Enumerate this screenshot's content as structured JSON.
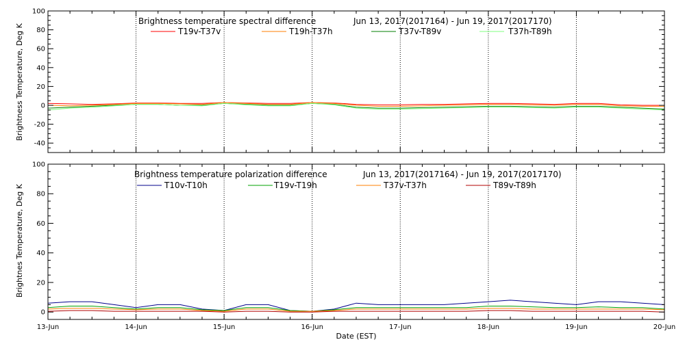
{
  "chart_data": [
    {
      "type": "line",
      "title": "Brightness temperature spectral difference",
      "date_range": "Jun 13, 2017(2017164) - Jun 19, 2017(2017170)",
      "ylabel": "Brightness Temperature, Deg K",
      "xlabel": "",
      "ylim": [
        -50,
        100
      ],
      "yticks": [
        "-40",
        "-20",
        "0",
        "20",
        "40",
        "60",
        "80",
        "100"
      ],
      "xlim": [
        0,
        7
      ],
      "xticks": [
        "13-Jun",
        "14-Jun",
        "15-Jun",
        "16-Jun",
        "17-Jun",
        "18-Jun",
        "19-Jun",
        "20-Jun"
      ],
      "x_tick_labels_shown": false,
      "vertical_gridlines": true,
      "series": [
        {
          "name": "T19v-T37v",
          "color": "#ff0000",
          "x": [
            0,
            0.25,
            0.5,
            0.75,
            1,
            1.25,
            1.5,
            1.75,
            2,
            2.25,
            2.5,
            2.75,
            3,
            3.25,
            3.5,
            3.75,
            4,
            4.25,
            4.5,
            4.75,
            5,
            5.25,
            5.5,
            5.75,
            6,
            6.25,
            6.5,
            6.75,
            7
          ],
          "values": [
            2,
            1.5,
            1,
            1.5,
            2.5,
            2.5,
            2,
            2,
            3,
            2.5,
            2,
            2,
            3,
            2.5,
            1,
            0.5,
            0.5,
            1,
            1,
            1.5,
            2,
            2,
            1.5,
            1,
            2,
            2,
            0.5,
            0,
            0
          ]
        },
        {
          "name": "T19h-T37h",
          "color": "#ff7f00",
          "x": [
            0,
            0.25,
            0.5,
            0.75,
            1,
            1.25,
            1.5,
            1.75,
            2,
            2.25,
            2.5,
            2.75,
            3,
            3.25,
            3.5,
            3.75,
            4,
            4.25,
            4.5,
            4.75,
            5,
            5.25,
            5.5,
            5.75,
            6,
            6.25,
            6.5,
            6.75,
            7
          ],
          "values": [
            0,
            -0.5,
            0,
            1,
            2,
            2,
            1.5,
            1,
            3,
            2,
            1,
            1,
            3,
            2,
            0,
            -1,
            -1,
            -0.5,
            0,
            0.5,
            1,
            1,
            0.5,
            0,
            1,
            1,
            -0.5,
            -1,
            -1
          ]
        },
        {
          "name": "T37v-T89v",
          "color": "#007f00",
          "x": [
            0,
            0.25,
            0.5,
            0.75,
            1,
            1.25,
            1.5,
            1.75,
            2,
            2.25,
            2.5,
            2.75,
            3,
            3.25,
            3.5,
            3.75,
            4,
            4.25,
            4.5,
            4.75,
            5,
            5.25,
            5.5,
            5.75,
            6,
            6.25,
            6.5,
            6.75,
            7
          ],
          "values": [
            -3,
            -2,
            -1,
            0,
            1,
            1,
            0,
            0,
            2,
            1,
            0,
            0,
            2,
            1,
            -2,
            -3,
            -3,
            -2.5,
            -2,
            -1.5,
            -1,
            -1,
            -1.5,
            -2,
            -1,
            -1,
            -2,
            -3,
            -4
          ]
        },
        {
          "name": "T37h-T89h",
          "color": "#7fff7f",
          "x": [
            0,
            0.25,
            0.5,
            0.75,
            1,
            1.25,
            1.5,
            1.75,
            2,
            2.25,
            2.5,
            2.75,
            3,
            3.25,
            3.5,
            3.75,
            4,
            4.25,
            4.5,
            4.75,
            5,
            5.25,
            5.5,
            5.75,
            6,
            6.25,
            6.5,
            6.75,
            7
          ],
          "values": [
            -5,
            -3,
            -2,
            -0.5,
            1,
            1,
            0,
            -0.5,
            2,
            0.5,
            -0.5,
            -0.5,
            2,
            0.5,
            -3,
            -4,
            -4,
            -3.5,
            -3,
            -2.5,
            -2,
            -2,
            -2.5,
            -3,
            -2,
            -2,
            -3,
            -4,
            -5
          ]
        }
      ]
    },
    {
      "type": "line",
      "title": "Brightness temperature polarization difference",
      "date_range": "Jun 13, 2017(2017164) - Jun 19, 2017(2017170)",
      "ylabel": "Brightnes Temperature, Deg K",
      "xlabel": "Date (EST)",
      "ylim": [
        -5,
        100
      ],
      "yticks": [
        "0",
        "20",
        "40",
        "60",
        "80",
        "100"
      ],
      "xlim": [
        0,
        7
      ],
      "xticks": [
        "13-Jun",
        "14-Jun",
        "15-Jun",
        "16-Jun",
        "17-Jun",
        "18-Jun",
        "19-Jun",
        "20-Jun"
      ],
      "x_tick_labels_shown": true,
      "vertical_gridlines": true,
      "series": [
        {
          "name": "T10v-T10h",
          "color": "#00008b",
          "x": [
            0,
            0.25,
            0.5,
            0.75,
            1,
            1.25,
            1.5,
            1.75,
            2,
            2.25,
            2.5,
            2.75,
            3,
            3.25,
            3.5,
            3.75,
            4,
            4.25,
            4.5,
            4.75,
            5,
            5.25,
            5.5,
            5.75,
            6,
            6.25,
            6.5,
            6.75,
            7
          ],
          "values": [
            6,
            7,
            7,
            5,
            3,
            5,
            5,
            2,
            1,
            5,
            5,
            1,
            0.5,
            2,
            6,
            5,
            5,
            5,
            5,
            6,
            7,
            8,
            7,
            6,
            5,
            7,
            7,
            6,
            5
          ]
        },
        {
          "name": "T19v-T19h",
          "color": "#00a000",
          "x": [
            0,
            0.25,
            0.5,
            0.75,
            1,
            1.25,
            1.5,
            1.75,
            2,
            2.25,
            2.5,
            2.75,
            3,
            3.25,
            3.5,
            3.75,
            4,
            4.25,
            4.5,
            4.75,
            5,
            5.25,
            5.5,
            5.75,
            6,
            6.25,
            6.5,
            6.75,
            7
          ],
          "values": [
            3,
            4,
            4,
            3,
            2,
            3,
            3,
            1.5,
            1,
            3,
            3,
            1,
            0.5,
            1.5,
            3,
            3,
            3,
            3,
            3,
            3,
            4,
            4,
            3.5,
            3,
            3,
            3.5,
            3,
            3,
            2
          ]
        },
        {
          "name": "T37v-T37h",
          "color": "#ff7f00",
          "x": [
            0,
            0.25,
            0.5,
            0.75,
            1,
            1.25,
            1.5,
            1.75,
            2,
            2.25,
            2.5,
            2.75,
            3,
            3.25,
            3.5,
            3.75,
            4,
            4.25,
            4.5,
            4.75,
            5,
            5.25,
            5.5,
            5.75,
            6,
            6.25,
            6.5,
            6.75,
            7
          ],
          "values": [
            2,
            2.5,
            2.5,
            2,
            1.5,
            2,
            2,
            1,
            0.5,
            2,
            2,
            0.5,
            0.5,
            1,
            2,
            2,
            2,
            2,
            2,
            2,
            2.5,
            2.5,
            2,
            2,
            2,
            2,
            2,
            2,
            1.5
          ]
        },
        {
          "name": "T89v-T89h",
          "color": "#b00000",
          "x": [
            0,
            0.25,
            0.5,
            0.75,
            1,
            1.25,
            1.5,
            1.75,
            2,
            2.25,
            2.5,
            2.75,
            3,
            3.25,
            3.5,
            3.75,
            4,
            4.25,
            4.5,
            4.75,
            5,
            5.25,
            5.5,
            5.75,
            6,
            6.25,
            6.5,
            6.75,
            7
          ],
          "values": [
            0.5,
            1,
            1,
            0.5,
            0.5,
            0.5,
            0.5,
            0.5,
            0,
            0.5,
            0.5,
            0,
            0,
            0.5,
            0.5,
            0.5,
            0.5,
            0.5,
            0.5,
            0.5,
            1,
            1,
            0.5,
            0.5,
            0.5,
            0.5,
            0.5,
            0.5,
            0
          ]
        }
      ]
    }
  ]
}
